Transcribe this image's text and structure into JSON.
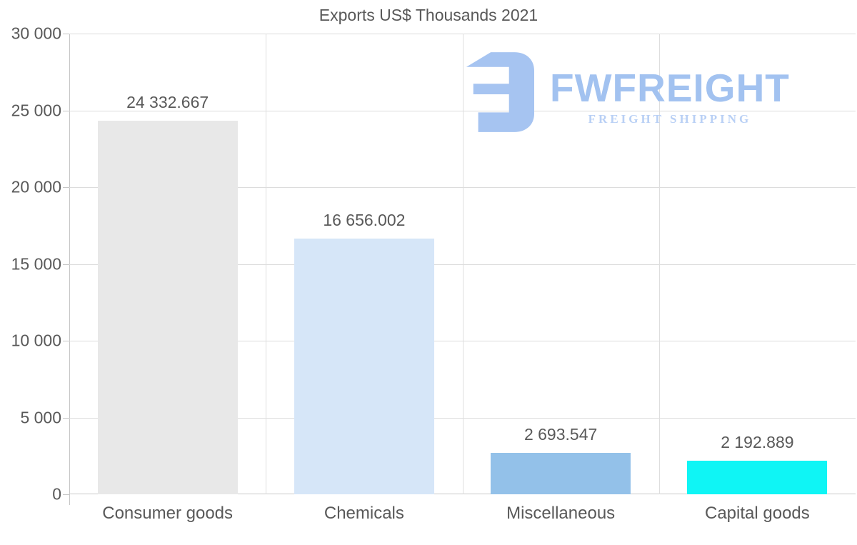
{
  "chart_data": {
    "type": "bar",
    "title": "Exports US$ Thousands 2021",
    "categories": [
      "Consumer goods",
      "Chemicals",
      "Miscellaneous",
      "Capital goods"
    ],
    "values": [
      24332.667,
      16656.002,
      2693.547,
      2192.889
    ],
    "value_labels": [
      "24 332.667",
      "16 656.002",
      "2 693.547",
      "2 192.889"
    ],
    "bar_colors": [
      "#e8e8e8",
      "#d6e6f8",
      "#93c1e9",
      "#0ff5f5"
    ],
    "ylim": [
      0,
      30000
    ],
    "ytick_step": 5000,
    "ytick_values": [
      0,
      5000,
      10000,
      15000,
      20000,
      25000,
      30000
    ],
    "ytick_labels": [
      "0",
      "5 000",
      "10 000",
      "15 000",
      "20 000",
      "25 000",
      "30 000"
    ],
    "xlabel": "",
    "ylabel": "",
    "legend": "none",
    "grid": "on"
  },
  "watermark": {
    "brand": "FWFREIGHT",
    "tagline": "FREIGHT SHIPPING",
    "icon": "fwfreight-logo-icon",
    "brand_color": "#a2c2f0",
    "tagline_color": "#b9d0f5",
    "icon_color": "#a6c4f1"
  },
  "colors": {
    "text": "#595959",
    "gridline": "#dcdcdc",
    "axis": "#c6c6c6",
    "background": "#ffffff"
  }
}
